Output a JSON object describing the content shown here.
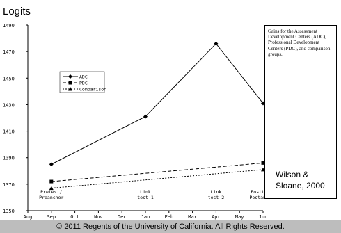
{
  "header": {
    "title": "Logits"
  },
  "note": "Gains for the Assessment Development Centers (ADC), Professional Development Centers (PDC), and comparison groups.",
  "citation": "Wilson & Sloane, 2000",
  "footer": {
    "text": "© 2011 Regents of the University of California. All Rights Reserved."
  },
  "chart_data": {
    "type": "line",
    "title": "Logits",
    "ylabel": "",
    "xlabel": "",
    "ylim": [
      1350,
      1490
    ],
    "yticks": [
      1350,
      1370,
      1390,
      1410,
      1430,
      1450,
      1470,
      1490
    ],
    "categories": [
      "Aug",
      "Sep",
      "Oct",
      "Nov",
      "Dec",
      "Jan",
      "Feb",
      "Mar",
      "Apr",
      "May",
      "Jun"
    ],
    "grid": false,
    "legend_position": "upper-left",
    "annotations": [
      {
        "category": "Sep",
        "lines": [
          "Pretest/",
          "Preanchor"
        ]
      },
      {
        "category": "Jan",
        "lines": [
          "Link",
          "test 1"
        ]
      },
      {
        "category": "Apr",
        "lines": [
          "Link",
          "test 2"
        ]
      },
      {
        "category": "Jun",
        "lines": [
          "Posttest/",
          "Postanchor"
        ]
      }
    ],
    "series": [
      {
        "name": "ADC",
        "marker": "diamond",
        "dash": "solid",
        "x": [
          "Sep",
          "Jan",
          "Apr",
          "Jun"
        ],
        "y": [
          1385,
          1421,
          1476,
          1431
        ]
      },
      {
        "name": "PDC",
        "marker": "square",
        "dash": "dashed",
        "x": [
          "Sep",
          "Jun"
        ],
        "y": [
          1372,
          1386
        ]
      },
      {
        "name": "Comparison",
        "marker": "triangle",
        "dash": "dotted",
        "x": [
          "Sep",
          "Jun"
        ],
        "y": [
          1367,
          1381
        ]
      }
    ]
  }
}
